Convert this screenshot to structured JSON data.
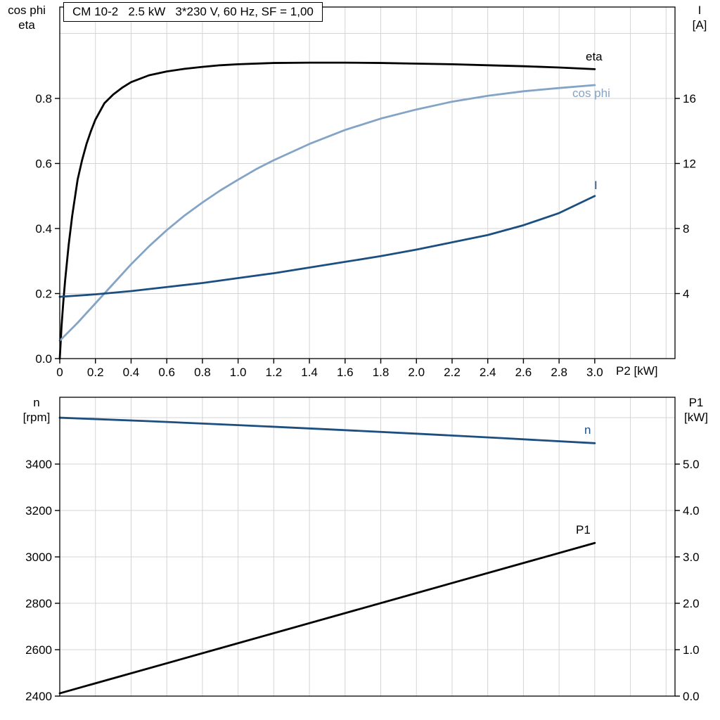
{
  "title_box": "CM 10-2   2.5 kW   3*230 V, 60 Hz, SF = 1,00",
  "colors": {
    "black": "#000000",
    "light_blue": "#84a4c6",
    "dark_blue": "#1c4f80",
    "grid": "#d4d4d4",
    "axis": "#000000"
  },
  "labels": {
    "top_left_1": "cos phi",
    "top_left_2": "eta",
    "top_right_1": "I",
    "top_right_2": "[A]",
    "x_axis": "P2 [kW]",
    "bottom_left_1": "n",
    "bottom_left_2": "[rpm]",
    "bottom_right_1": "P1",
    "bottom_right_2": "[kW]",
    "curve_eta": "eta",
    "curve_cos_phi": "cos phi",
    "curve_current": "I",
    "curve_n": "n",
    "curve_p1": "P1"
  },
  "chart_data": [
    {
      "type": "line",
      "title": "CM 10-2   2.5 kW   3*230 V, 60 Hz, SF = 1,00",
      "xlabel": "P2 [kW]",
      "xlim": [
        0,
        3.45
      ],
      "grid_x": [
        0.2,
        0.4,
        0.6,
        0.8,
        1.0,
        1.2,
        1.4,
        1.6,
        1.8,
        2.0,
        2.2,
        2.4,
        2.6,
        2.8,
        3.0,
        3.2,
        3.4
      ],
      "grid_y_left": [
        0.2,
        0.4,
        0.6,
        0.8,
        1.0
      ],
      "x_ticks": {
        "show_labels": true,
        "values": [
          0,
          0.2,
          0.4,
          0.6,
          0.8,
          1.0,
          1.2,
          1.4,
          1.6,
          1.8,
          2.0,
          2.2,
          2.4,
          2.6,
          2.8,
          3.0
        ],
        "labels": [
          "0",
          "0.2",
          "0.4",
          "0.6",
          "0.8",
          "1.0",
          "1.2",
          "1.4",
          "1.6",
          "1.8",
          "2.0",
          "2.2",
          "2.4",
          "2.6",
          "2.8",
          "3.0"
        ]
      },
      "left_axis": {
        "label": "cos phi / eta",
        "lim": [
          0,
          1.081
        ],
        "tick_values": [
          0,
          0.2,
          0.4,
          0.6,
          0.8
        ],
        "tick_labels": [
          "0.0",
          "0.2",
          "0.4",
          "0.6",
          "0.8"
        ]
      },
      "right_axis": {
        "label": "I [A]",
        "lim": [
          0,
          21.62
        ],
        "tick_values": [
          4,
          8,
          12,
          16
        ],
        "tick_labels": [
          "4",
          "8",
          "12",
          "16"
        ]
      },
      "series": [
        {
          "id": "eta",
          "name": "eta",
          "axis": "left",
          "color": "black",
          "x": [
            0,
            0.01,
            0.02,
            0.03,
            0.05,
            0.07,
            0.1,
            0.125,
            0.15,
            0.175,
            0.2,
            0.25,
            0.3,
            0.35,
            0.4,
            0.5,
            0.6,
            0.7,
            0.8,
            0.9,
            1.0,
            1.2,
            1.4,
            1.6,
            1.8,
            2.0,
            2.2,
            2.4,
            2.6,
            2.8,
            3.0
          ],
          "y": [
            0,
            0.1,
            0.175,
            0.24,
            0.35,
            0.44,
            0.55,
            0.61,
            0.66,
            0.7,
            0.735,
            0.785,
            0.812,
            0.833,
            0.85,
            0.871,
            0.883,
            0.891,
            0.897,
            0.902,
            0.905,
            0.909,
            0.91,
            0.91,
            0.909,
            0.907,
            0.905,
            0.902,
            0.899,
            0.895,
            0.89
          ]
        },
        {
          "id": "cos-phi",
          "name": "cos phi",
          "axis": "left",
          "color": "light_blue",
          "x": [
            0,
            0.1,
            0.2,
            0.3,
            0.4,
            0.5,
            0.6,
            0.7,
            0.8,
            0.9,
            1.0,
            1.1,
            1.2,
            1.4,
            1.6,
            1.8,
            2.0,
            2.2,
            2.4,
            2.6,
            2.8,
            3.0
          ],
          "y": [
            0.055,
            0.11,
            0.17,
            0.23,
            0.29,
            0.345,
            0.395,
            0.44,
            0.48,
            0.517,
            0.55,
            0.582,
            0.61,
            0.66,
            0.703,
            0.738,
            0.766,
            0.79,
            0.808,
            0.822,
            0.832,
            0.841
          ]
        },
        {
          "id": "current",
          "name": "I",
          "axis": "right",
          "color": "dark_blue",
          "x": [
            0,
            0.2,
            0.4,
            0.6,
            0.8,
            1.0,
            1.2,
            1.4,
            1.6,
            1.8,
            2.0,
            2.2,
            2.4,
            2.6,
            2.8,
            3.0
          ],
          "y": [
            3.8,
            3.95,
            4.15,
            4.4,
            4.65,
            4.95,
            5.25,
            5.6,
            5.95,
            6.3,
            6.7,
            7.15,
            7.6,
            8.2,
            8.95,
            10.0
          ]
        }
      ]
    },
    {
      "type": "line",
      "title": "",
      "xlabel": "",
      "xlim": [
        0,
        3.45
      ],
      "grid_x": [
        0.2,
        0.4,
        0.6,
        0.8,
        1.0,
        1.2,
        1.4,
        1.6,
        1.8,
        2.0,
        2.2,
        2.4,
        2.6,
        2.8,
        3.0,
        3.2,
        3.4
      ],
      "grid_y_left": [
        2600,
        2800,
        3000,
        3200,
        3400,
        3600
      ],
      "x_ticks": {
        "show_labels": false,
        "values": [],
        "labels": []
      },
      "left_axis": {
        "label": "n [rpm]",
        "lim": [
          2400,
          3688
        ],
        "tick_values": [
          2400,
          2600,
          2800,
          3000,
          3200,
          3400
        ],
        "tick_labels": [
          "2400",
          "2600",
          "2800",
          "3000",
          "3200",
          "3400"
        ]
      },
      "right_axis": {
        "label": "P1 [kW]",
        "lim": [
          0,
          6.44
        ],
        "tick_values": [
          0,
          1,
          2,
          3,
          4,
          5
        ],
        "tick_labels": [
          "0.0",
          "1.0",
          "2.0",
          "3.0",
          "4.0",
          "5.0"
        ]
      },
      "series": [
        {
          "id": "n",
          "name": "n",
          "axis": "left",
          "color": "dark_blue",
          "x": [
            0,
            0.5,
            1.0,
            1.5,
            2.0,
            2.5,
            3.0
          ],
          "y": [
            3600,
            3585,
            3568,
            3550,
            3531,
            3511,
            3490
          ]
        },
        {
          "id": "p1",
          "name": "P1",
          "axis": "right",
          "color": "black",
          "x": [
            0,
            1.0,
            2.0,
            3.0
          ],
          "y": [
            0.06,
            1.14,
            2.22,
            3.3
          ]
        }
      ]
    }
  ]
}
